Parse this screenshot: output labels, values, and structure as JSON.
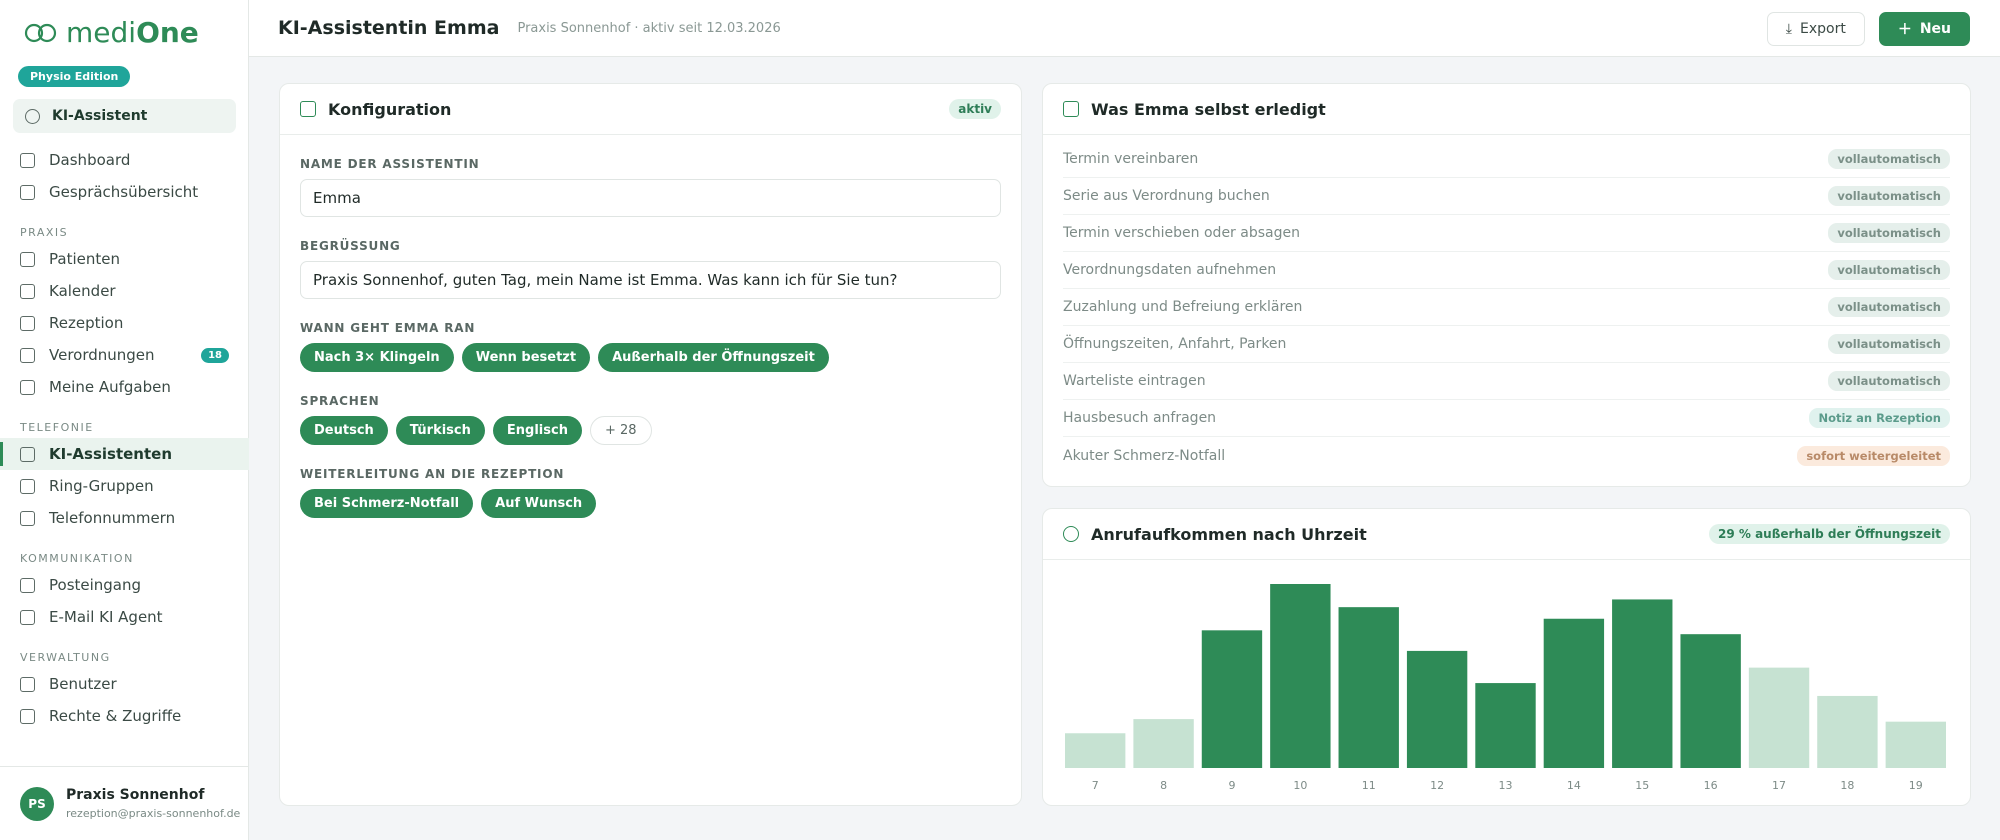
{
  "sidebar": {
    "logo_light": "medi",
    "logo_bold": "One",
    "edition": "Physio Edition",
    "pinned": "KI-Assistent",
    "groups": [
      {
        "items": [
          {
            "label": "Dashboard"
          },
          {
            "label": "Gesprächsübersicht"
          }
        ]
      },
      {
        "heading": "PRAXIS",
        "items": [
          {
            "label": "Patienten"
          },
          {
            "label": "Kalender"
          },
          {
            "label": "Rezeption"
          },
          {
            "label": "Verordnungen",
            "badge": 18
          },
          {
            "label": "Meine Aufgaben"
          }
        ]
      },
      {
        "heading": "TELEFONIE",
        "items": [
          {
            "label": "KI-Assistenten",
            "active": true
          },
          {
            "label": "Ring-Gruppen"
          },
          {
            "label": "Telefonnummern"
          }
        ]
      },
      {
        "heading": "KOMMUNIKATION",
        "items": [
          {
            "label": "Posteingang"
          },
          {
            "label": "E-Mail KI Agent"
          }
        ]
      },
      {
        "heading": "VERWALTUNG",
        "items": [
          {
            "label": "Benutzer"
          },
          {
            "label": "Rechte & Zugriffe"
          }
        ]
      }
    ],
    "user": {
      "initials": "PS",
      "name": "Praxis Sonnenhof",
      "email": "rezeption@praxis-sonnenhof.de"
    }
  },
  "header": {
    "title": "KI-Assistentin Emma",
    "subtitle": "Praxis Sonnenhof · aktiv seit 12.03.2026",
    "buttons": [
      "Export",
      "Neu"
    ]
  },
  "config": {
    "title": "Konfiguration",
    "status": "aktiv",
    "fields": [
      {
        "label": "NAME DER ASSISTENTIN",
        "input": "Emma"
      },
      {
        "label": "BEGRÜSSUNG",
        "input": "Praxis Sonnenhof, guten Tag, mein Name ist Emma. Was kann ich für Sie tun?"
      },
      {
        "label": "WANN GEHT EMMA RAN",
        "chips": [
          "Nach 3× Klingeln",
          "Wenn besetzt",
          "Außerhalb der Öffnungszeit"
        ]
      },
      {
        "label": "SPRACHEN",
        "chips": [
          "Deutsch",
          "Türkisch",
          "Englisch"
        ],
        "more": "+ 28"
      },
      {
        "label": "WEITERLEITUNG AN DIE REZEPTION",
        "chips": [
          "Bei Schmerz-Notfall",
          "Auf Wunsch"
        ]
      }
    ]
  },
  "tasks": {
    "title": "Was Emma selbst erledigt",
    "rows": [
      {
        "label": "Termin vereinbaren",
        "status": "vollautomatisch",
        "badge_bg": "#e5efeb",
        "badge_fg": "#7b9088"
      },
      {
        "label": "Serie aus Verordnung buchen",
        "status": "vollautomatisch",
        "badge_bg": "#e5efeb",
        "badge_fg": "#7b9088"
      },
      {
        "label": "Termin verschieben oder absagen",
        "status": "vollautomatisch",
        "badge_bg": "#e5efeb",
        "badge_fg": "#7b9088"
      },
      {
        "label": "Verordnungsdaten aufnehmen",
        "status": "vollautomatisch",
        "badge_bg": "#e5efeb",
        "badge_fg": "#7b9088"
      },
      {
        "label": "Zuzahlung und Befreiung erklären",
        "status": "vollautomatisch",
        "badge_bg": "#e5efeb",
        "badge_fg": "#7b9088"
      },
      {
        "label": "Öffnungszeiten, Anfahrt, Parken",
        "status": "vollautomatisch",
        "badge_bg": "#e5efeb",
        "badge_fg": "#7b9088"
      },
      {
        "label": "Warteliste eintragen",
        "status": "vollautomatisch",
        "badge_bg": "#e5efeb",
        "badge_fg": "#7b9088"
      },
      {
        "label": "Hausbesuch anfragen",
        "status": "Notiz an Rezeption",
        "badge_bg": "#e0f2ee",
        "badge_fg": "#5b9b8b"
      },
      {
        "label": "Akuter Schmerz-Notfall",
        "status": "sofort weitergeleitet",
        "badge_bg": "#fbeadd",
        "badge_fg": "#b88a68"
      }
    ]
  },
  "chart_data": {
    "type": "bar",
    "title": "Anrufaufkommen nach Uhrzeit",
    "annotation": "29 % außerhalb der Öffnungszeit",
    "categories": [
      "7",
      "8",
      "9",
      "10",
      "11",
      "12",
      "13",
      "14",
      "15",
      "16",
      "17",
      "18",
      "19"
    ],
    "values": [
      27,
      38,
      107,
      143,
      125,
      91,
      66,
      116,
      131,
      104,
      78,
      56,
      36
    ],
    "colors": [
      "#c6e2d2",
      "#c6e2d2",
      "#2e8b57",
      "#2e8b57",
      "#2e8b57",
      "#2e8b57",
      "#2e8b57",
      "#2e8b57",
      "#2e8b57",
      "#2e8b57",
      "#c6e2d2",
      "#c6e2d2",
      "#c6e2d2"
    ]
  }
}
